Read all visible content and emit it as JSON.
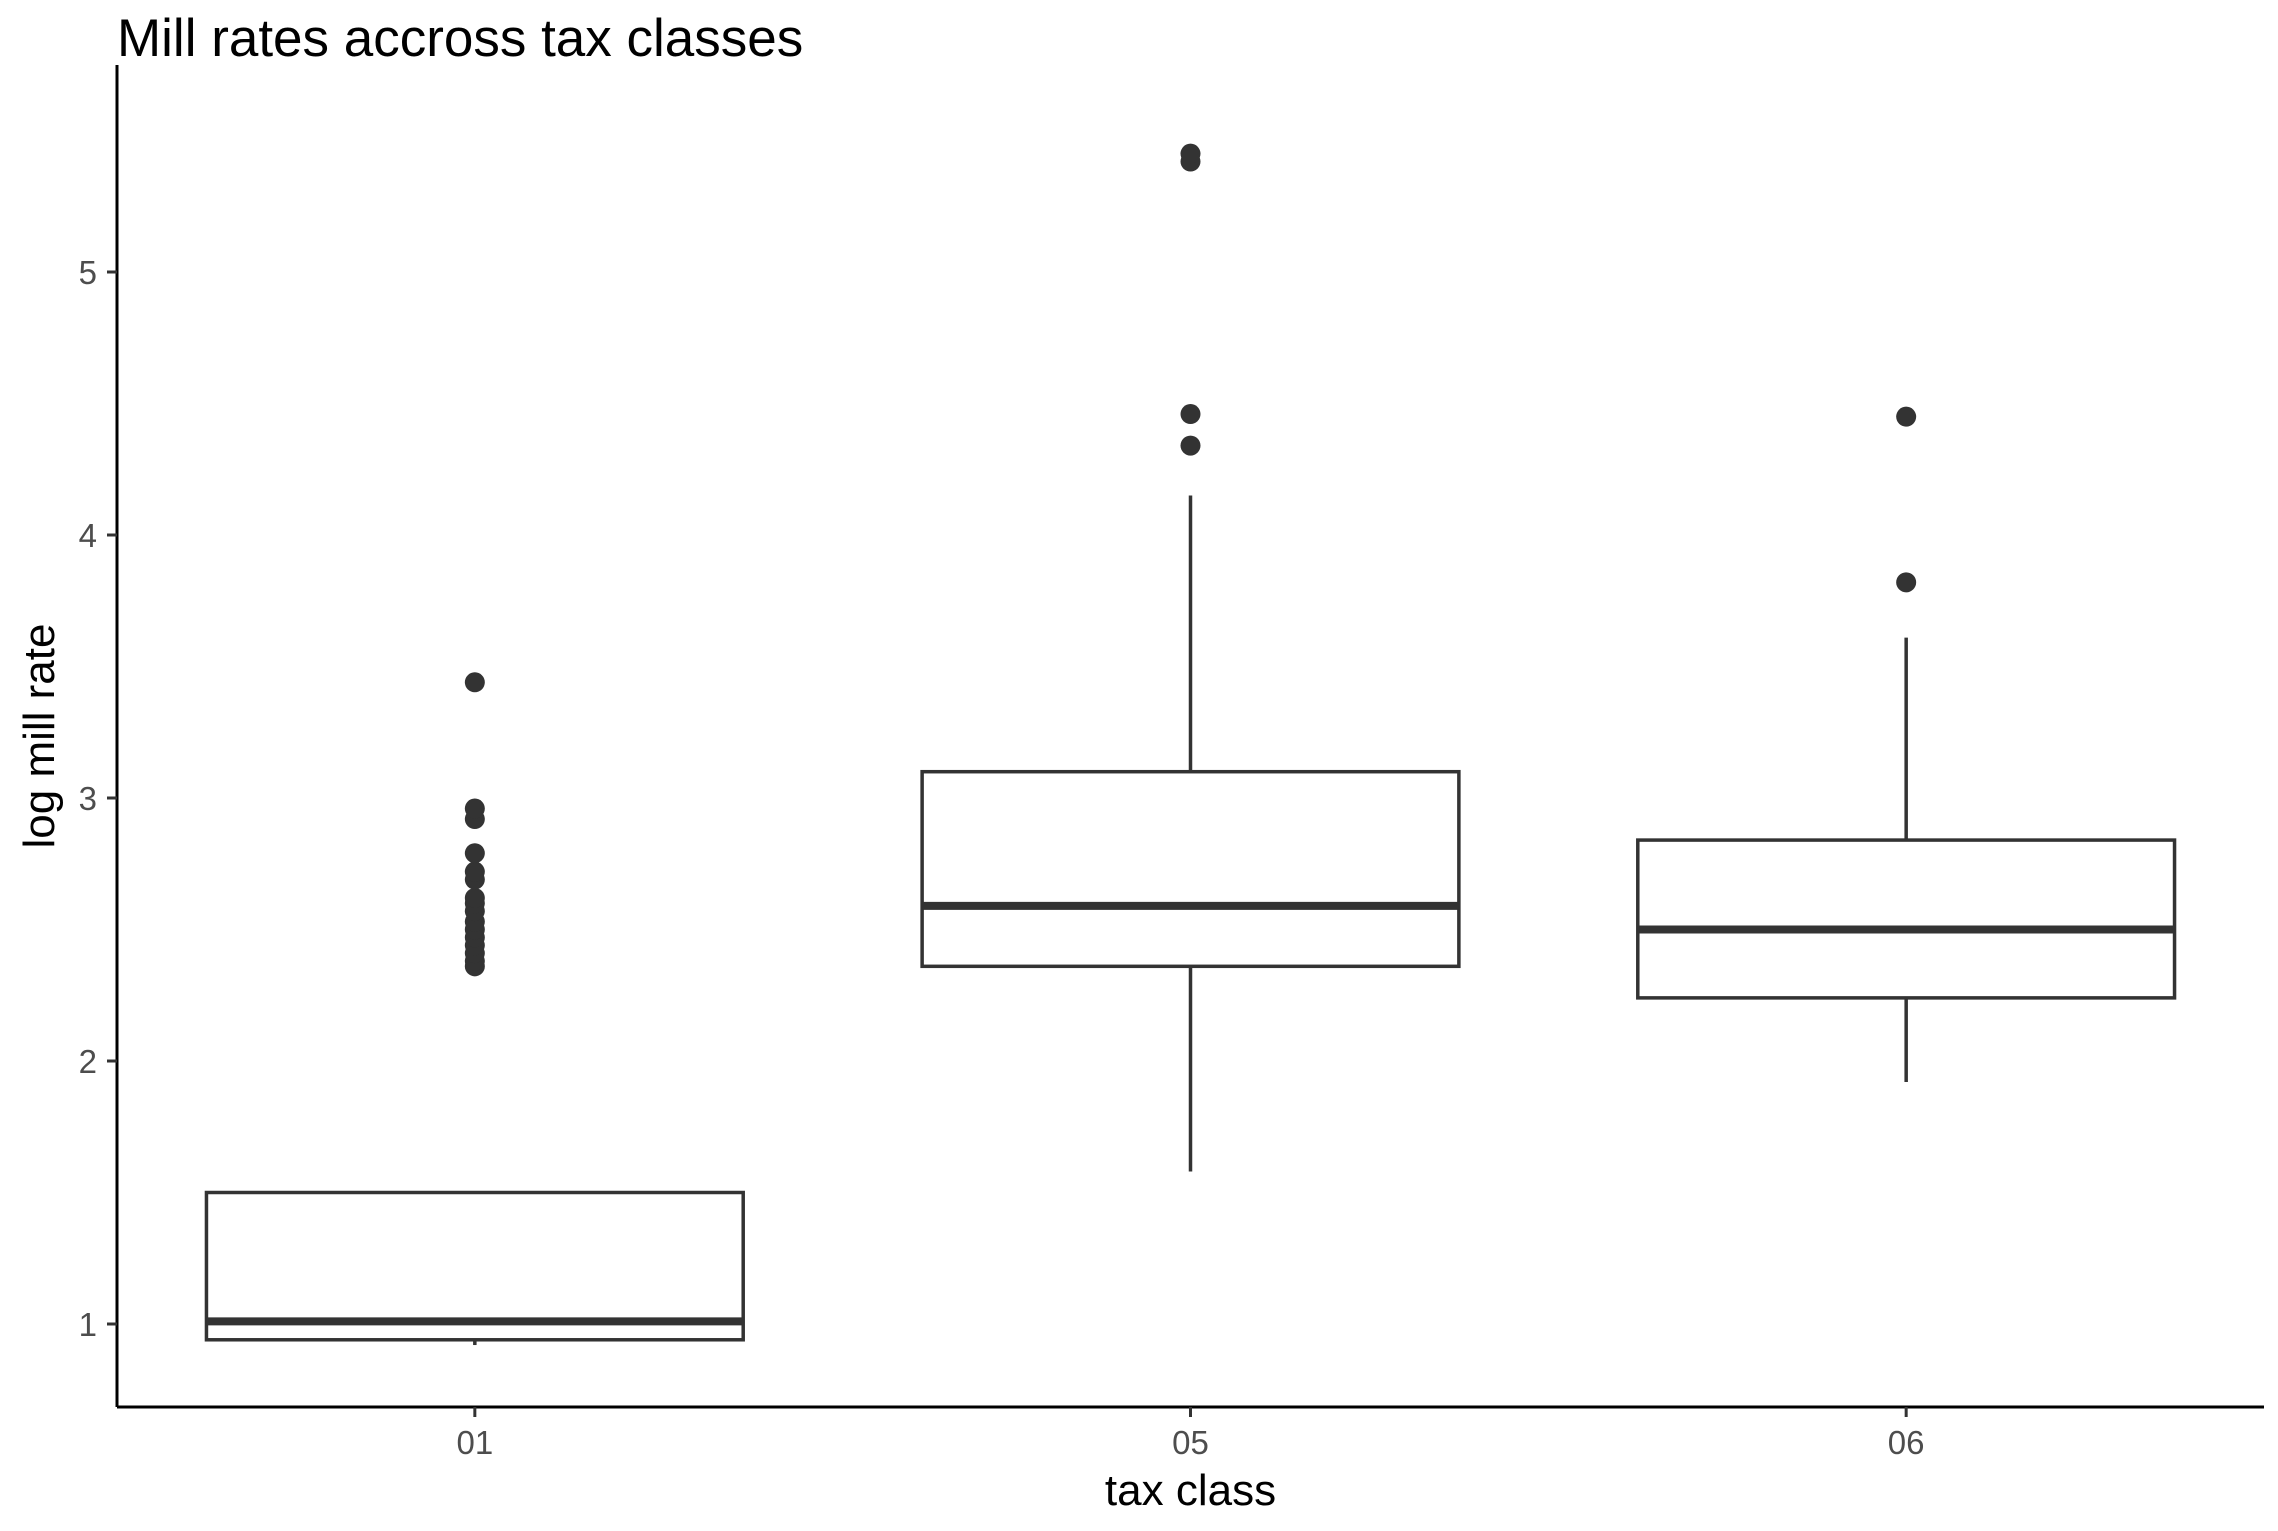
{
  "chart_data": {
    "type": "boxplot",
    "title": "Mill rates accross tax classes",
    "xlabel": "tax class",
    "ylabel": "log mill rate",
    "ylim": [
      0.69,
      5.67
    ],
    "yticks": [
      1,
      2,
      3,
      4,
      5
    ],
    "grid": false,
    "colors": {
      "box_stroke": "#333333",
      "box_fill": "#ffffff",
      "outlier": "#333333",
      "axis": "#000000",
      "tick_label": "#4d4d4d"
    },
    "categories": [
      "01",
      "05",
      "06"
    ],
    "boxes": [
      {
        "category": "01",
        "whisker_low": 0.92,
        "q1": 0.94,
        "median": 1.01,
        "q3": 1.5,
        "whisker_high": 1.5,
        "outliers": [
          2.36,
          2.38,
          2.41,
          2.44,
          2.47,
          2.5,
          2.53,
          2.57,
          2.6,
          2.62,
          2.69,
          2.72,
          2.79,
          2.92,
          2.96,
          3.44
        ]
      },
      {
        "category": "05",
        "whisker_low": 1.58,
        "q1": 2.36,
        "median": 2.59,
        "q3": 3.1,
        "whisker_high": 4.15,
        "outliers": [
          4.34,
          4.46,
          5.42,
          5.45
        ]
      },
      {
        "category": "06",
        "whisker_low": 1.92,
        "q1": 2.24,
        "median": 2.5,
        "q3": 2.84,
        "whisker_high": 3.61,
        "outliers": [
          3.82,
          4.45
        ]
      }
    ]
  }
}
